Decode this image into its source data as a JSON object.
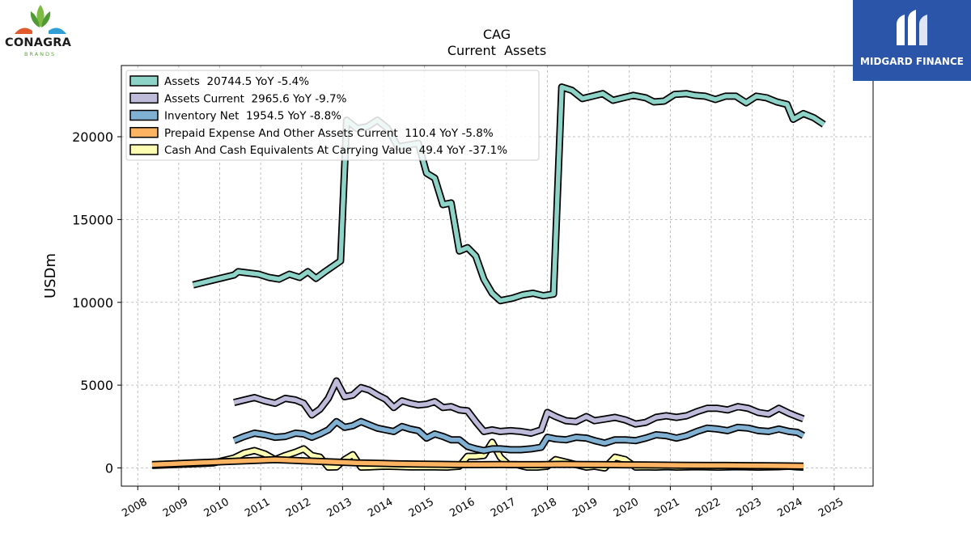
{
  "logos": {
    "left": {
      "name": "CONAGRA",
      "sub": "BRANDS"
    },
    "right": {
      "name": "MIDGARD FINANCE"
    }
  },
  "chart_data": {
    "type": "line",
    "title": "CAG",
    "subtitle": "Current  Assets",
    "ylabel": "USDm",
    "xlim": [
      2007.6,
      2025.95
    ],
    "ylim": [
      -1100,
      24300
    ],
    "yticks": [
      0,
      5000,
      10000,
      15000,
      20000
    ],
    "xticks": [
      2008,
      2009,
      2010,
      2011,
      2012,
      2013,
      2014,
      2015,
      2016,
      2017,
      2018,
      2019,
      2020,
      2021,
      2022,
      2023,
      2024,
      2025
    ],
    "grid": true,
    "legend_position": "top-left",
    "series": [
      {
        "name": "Assets  20744.5 YoY -5.4%",
        "color": "#8dd3c7",
        "points": [
          [
            2009.35,
            11050
          ],
          [
            2009.85,
            11350
          ],
          [
            2010.35,
            11650
          ],
          [
            2010.45,
            11850
          ],
          [
            2010.95,
            11700
          ],
          [
            2011.2,
            11500
          ],
          [
            2011.45,
            11400
          ],
          [
            2011.7,
            11700
          ],
          [
            2011.95,
            11500
          ],
          [
            2012.15,
            11850
          ],
          [
            2012.35,
            11450
          ],
          [
            2012.6,
            11900
          ],
          [
            2012.95,
            12500
          ],
          [
            2013.1,
            21000
          ],
          [
            2013.35,
            20500
          ],
          [
            2013.6,
            20600
          ],
          [
            2013.85,
            21000
          ],
          [
            2014.1,
            20500
          ],
          [
            2014.35,
            19400
          ],
          [
            2014.6,
            19500
          ],
          [
            2014.85,
            19600
          ],
          [
            2015.05,
            17800
          ],
          [
            2015.25,
            17500
          ],
          [
            2015.45,
            15900
          ],
          [
            2015.65,
            16000
          ],
          [
            2015.85,
            13100
          ],
          [
            2016.05,
            13300
          ],
          [
            2016.25,
            12800
          ],
          [
            2016.45,
            11400
          ],
          [
            2016.65,
            10550
          ],
          [
            2016.85,
            10100
          ],
          [
            2017.15,
            10250
          ],
          [
            2017.4,
            10450
          ],
          [
            2017.65,
            10550
          ],
          [
            2017.9,
            10400
          ],
          [
            2018.15,
            10500
          ],
          [
            2018.35,
            23000
          ],
          [
            2018.6,
            22800
          ],
          [
            2018.85,
            22300
          ],
          [
            2019.1,
            22450
          ],
          [
            2019.35,
            22600
          ],
          [
            2019.6,
            22200
          ],
          [
            2019.85,
            22350
          ],
          [
            2020.1,
            22500
          ],
          [
            2020.4,
            22350
          ],
          [
            2020.6,
            22100
          ],
          [
            2020.85,
            22150
          ],
          [
            2021.1,
            22550
          ],
          [
            2021.4,
            22600
          ],
          [
            2021.6,
            22500
          ],
          [
            2021.85,
            22450
          ],
          [
            2022.1,
            22250
          ],
          [
            2022.35,
            22450
          ],
          [
            2022.6,
            22450
          ],
          [
            2022.85,
            22050
          ],
          [
            2023.1,
            22450
          ],
          [
            2023.35,
            22350
          ],
          [
            2023.6,
            22100
          ],
          [
            2023.85,
            21950
          ],
          [
            2024.0,
            21050
          ],
          [
            2024.25,
            21400
          ],
          [
            2024.5,
            21150
          ],
          [
            2024.75,
            20744.5
          ]
        ]
      },
      {
        "name": "Assets Current  2965.6 YoY -9.7%",
        "color": "#bebada",
        "points": [
          [
            2010.35,
            3950
          ],
          [
            2010.6,
            4100
          ],
          [
            2010.85,
            4250
          ],
          [
            2011.1,
            4050
          ],
          [
            2011.35,
            3900
          ],
          [
            2011.6,
            4200
          ],
          [
            2011.85,
            4100
          ],
          [
            2012.05,
            3900
          ],
          [
            2012.25,
            3200
          ],
          [
            2012.45,
            3550
          ],
          [
            2012.65,
            4200
          ],
          [
            2012.85,
            5250
          ],
          [
            2013.05,
            4300
          ],
          [
            2013.25,
            4400
          ],
          [
            2013.45,
            4850
          ],
          [
            2013.65,
            4700
          ],
          [
            2013.85,
            4400
          ],
          [
            2014.05,
            4150
          ],
          [
            2014.25,
            3650
          ],
          [
            2014.45,
            4050
          ],
          [
            2014.65,
            3900
          ],
          [
            2014.85,
            3800
          ],
          [
            2015.05,
            3850
          ],
          [
            2015.25,
            4000
          ],
          [
            2015.45,
            3650
          ],
          [
            2015.65,
            3700
          ],
          [
            2015.85,
            3500
          ],
          [
            2016.05,
            3450
          ],
          [
            2016.25,
            2800
          ],
          [
            2016.45,
            2200
          ],
          [
            2016.65,
            2300
          ],
          [
            2016.85,
            2200
          ],
          [
            2017.1,
            2250
          ],
          [
            2017.35,
            2200
          ],
          [
            2017.6,
            2100
          ],
          [
            2017.85,
            2300
          ],
          [
            2018.0,
            3350
          ],
          [
            2018.2,
            3100
          ],
          [
            2018.45,
            2850
          ],
          [
            2018.7,
            2800
          ],
          [
            2018.95,
            3100
          ],
          [
            2019.15,
            2850
          ],
          [
            2019.4,
            2950
          ],
          [
            2019.65,
            3050
          ],
          [
            2019.9,
            2900
          ],
          [
            2020.15,
            2650
          ],
          [
            2020.4,
            2750
          ],
          [
            2020.65,
            3050
          ],
          [
            2020.9,
            3150
          ],
          [
            2021.15,
            3050
          ],
          [
            2021.4,
            3150
          ],
          [
            2021.65,
            3400
          ],
          [
            2021.9,
            3600
          ],
          [
            2022.15,
            3600
          ],
          [
            2022.4,
            3500
          ],
          [
            2022.65,
            3700
          ],
          [
            2022.9,
            3600
          ],
          [
            2023.15,
            3350
          ],
          [
            2023.4,
            3250
          ],
          [
            2023.65,
            3600
          ],
          [
            2023.9,
            3300
          ],
          [
            2024.1,
            3100
          ],
          [
            2024.25,
            2965.6
          ]
        ]
      },
      {
        "name": "Inventory Net  1954.5 YoY -8.8%",
        "color": "#80b1d3",
        "points": [
          [
            2010.35,
            1650
          ],
          [
            2010.6,
            1900
          ],
          [
            2010.85,
            2100
          ],
          [
            2011.1,
            2000
          ],
          [
            2011.35,
            1850
          ],
          [
            2011.6,
            1900
          ],
          [
            2011.85,
            2100
          ],
          [
            2012.05,
            2050
          ],
          [
            2012.25,
            1850
          ],
          [
            2012.45,
            2050
          ],
          [
            2012.65,
            2300
          ],
          [
            2012.85,
            2800
          ],
          [
            2013.05,
            2450
          ],
          [
            2013.25,
            2550
          ],
          [
            2013.45,
            2800
          ],
          [
            2013.65,
            2600
          ],
          [
            2013.85,
            2400
          ],
          [
            2014.05,
            2300
          ],
          [
            2014.25,
            2200
          ],
          [
            2014.45,
            2500
          ],
          [
            2014.65,
            2350
          ],
          [
            2014.85,
            2250
          ],
          [
            2015.05,
            1800
          ],
          [
            2015.25,
            2050
          ],
          [
            2015.45,
            1900
          ],
          [
            2015.65,
            1700
          ],
          [
            2015.85,
            1700
          ],
          [
            2016.05,
            1300
          ],
          [
            2016.25,
            1150
          ],
          [
            2016.45,
            1050
          ],
          [
            2016.65,
            1150
          ],
          [
            2016.85,
            1150
          ],
          [
            2017.1,
            1100
          ],
          [
            2017.35,
            1100
          ],
          [
            2017.6,
            1150
          ],
          [
            2017.85,
            1250
          ],
          [
            2018.0,
            1850
          ],
          [
            2018.2,
            1750
          ],
          [
            2018.45,
            1700
          ],
          [
            2018.7,
            1850
          ],
          [
            2018.95,
            1800
          ],
          [
            2019.15,
            1650
          ],
          [
            2019.4,
            1500
          ],
          [
            2019.65,
            1700
          ],
          [
            2019.9,
            1700
          ],
          [
            2020.15,
            1650
          ],
          [
            2020.4,
            1800
          ],
          [
            2020.65,
            2000
          ],
          [
            2020.9,
            1950
          ],
          [
            2021.15,
            1800
          ],
          [
            2021.4,
            1950
          ],
          [
            2021.65,
            2200
          ],
          [
            2021.9,
            2400
          ],
          [
            2022.15,
            2350
          ],
          [
            2022.4,
            2250
          ],
          [
            2022.65,
            2450
          ],
          [
            2022.9,
            2400
          ],
          [
            2023.15,
            2250
          ],
          [
            2023.4,
            2200
          ],
          [
            2023.65,
            2350
          ],
          [
            2023.9,
            2200
          ],
          [
            2024.1,
            2150
          ],
          [
            2024.25,
            1954.5
          ]
        ]
      },
      {
        "name": "Prepaid Expense And Other Assets Current  110.4 YoY -5.8%",
        "color": "#fdb462",
        "points": [
          [
            2008.35,
            200
          ],
          [
            2008.85,
            250
          ],
          [
            2009.35,
            300
          ],
          [
            2009.85,
            350
          ],
          [
            2010.35,
            400
          ],
          [
            2010.85,
            450
          ],
          [
            2011.35,
            500
          ],
          [
            2011.85,
            450
          ],
          [
            2012.35,
            400
          ],
          [
            2012.85,
            350
          ],
          [
            2013.35,
            300
          ],
          [
            2013.85,
            280
          ],
          [
            2014.35,
            250
          ],
          [
            2014.85,
            230
          ],
          [
            2015.35,
            220
          ],
          [
            2015.85,
            200
          ],
          [
            2016.35,
            200
          ],
          [
            2016.85,
            210
          ],
          [
            2017.35,
            200
          ],
          [
            2017.85,
            200
          ],
          [
            2018.35,
            220
          ],
          [
            2018.85,
            210
          ],
          [
            2019.35,
            200
          ],
          [
            2019.85,
            190
          ],
          [
            2020.35,
            180
          ],
          [
            2020.85,
            170
          ],
          [
            2021.35,
            160
          ],
          [
            2021.85,
            150
          ],
          [
            2022.35,
            150
          ],
          [
            2022.85,
            140
          ],
          [
            2023.35,
            130
          ],
          [
            2023.85,
            120
          ],
          [
            2024.25,
            110.4
          ]
        ]
      },
      {
        "name": "Cash And Cash Equivalents At Carrying Value  49.4 YoY -37.1%",
        "color": "#ffffb3",
        "points": [
          [
            2008.35,
            150
          ],
          [
            2008.85,
            200
          ],
          [
            2009.35,
            250
          ],
          [
            2009.85,
            300
          ],
          [
            2010.35,
            600
          ],
          [
            2010.6,
            900
          ],
          [
            2010.85,
            1050
          ],
          [
            2011.1,
            850
          ],
          [
            2011.35,
            500
          ],
          [
            2011.6,
            750
          ],
          [
            2011.85,
            950
          ],
          [
            2012.05,
            1150
          ],
          [
            2012.25,
            750
          ],
          [
            2012.45,
            650
          ],
          [
            2012.65,
            50
          ],
          [
            2012.85,
            60
          ],
          [
            2013.05,
            500
          ],
          [
            2013.25,
            800
          ],
          [
            2013.45,
            50
          ],
          [
            2013.65,
            60
          ],
          [
            2013.85,
            80
          ],
          [
            2014.05,
            100
          ],
          [
            2014.35,
            80
          ],
          [
            2014.65,
            60
          ],
          [
            2014.95,
            60
          ],
          [
            2015.25,
            60
          ],
          [
            2015.55,
            50
          ],
          [
            2015.85,
            100
          ],
          [
            2016.05,
            700
          ],
          [
            2016.25,
            700
          ],
          [
            2016.45,
            750
          ],
          [
            2016.65,
            1550
          ],
          [
            2016.85,
            650
          ],
          [
            2017.05,
            200
          ],
          [
            2017.25,
            200
          ],
          [
            2017.5,
            50
          ],
          [
            2017.75,
            50
          ],
          [
            2018.0,
            100
          ],
          [
            2018.2,
            500
          ],
          [
            2018.45,
            350
          ],
          [
            2018.7,
            200
          ],
          [
            2018.95,
            50
          ],
          [
            2019.15,
            100
          ],
          [
            2019.4,
            0
          ],
          [
            2019.65,
            650
          ],
          [
            2019.9,
            500
          ],
          [
            2020.15,
            50
          ],
          [
            2020.4,
            60
          ],
          [
            2020.65,
            50
          ],
          [
            2020.9,
            70
          ],
          [
            2021.15,
            50
          ],
          [
            2021.4,
            60
          ],
          [
            2021.65,
            70
          ],
          [
            2021.9,
            60
          ],
          [
            2022.15,
            50
          ],
          [
            2022.4,
            60
          ],
          [
            2022.65,
            70
          ],
          [
            2022.9,
            60
          ],
          [
            2023.15,
            50
          ],
          [
            2023.4,
            60
          ],
          [
            2023.65,
            70
          ],
          [
            2023.9,
            100
          ],
          [
            2024.1,
            60
          ],
          [
            2024.25,
            49.4
          ]
        ]
      }
    ]
  }
}
